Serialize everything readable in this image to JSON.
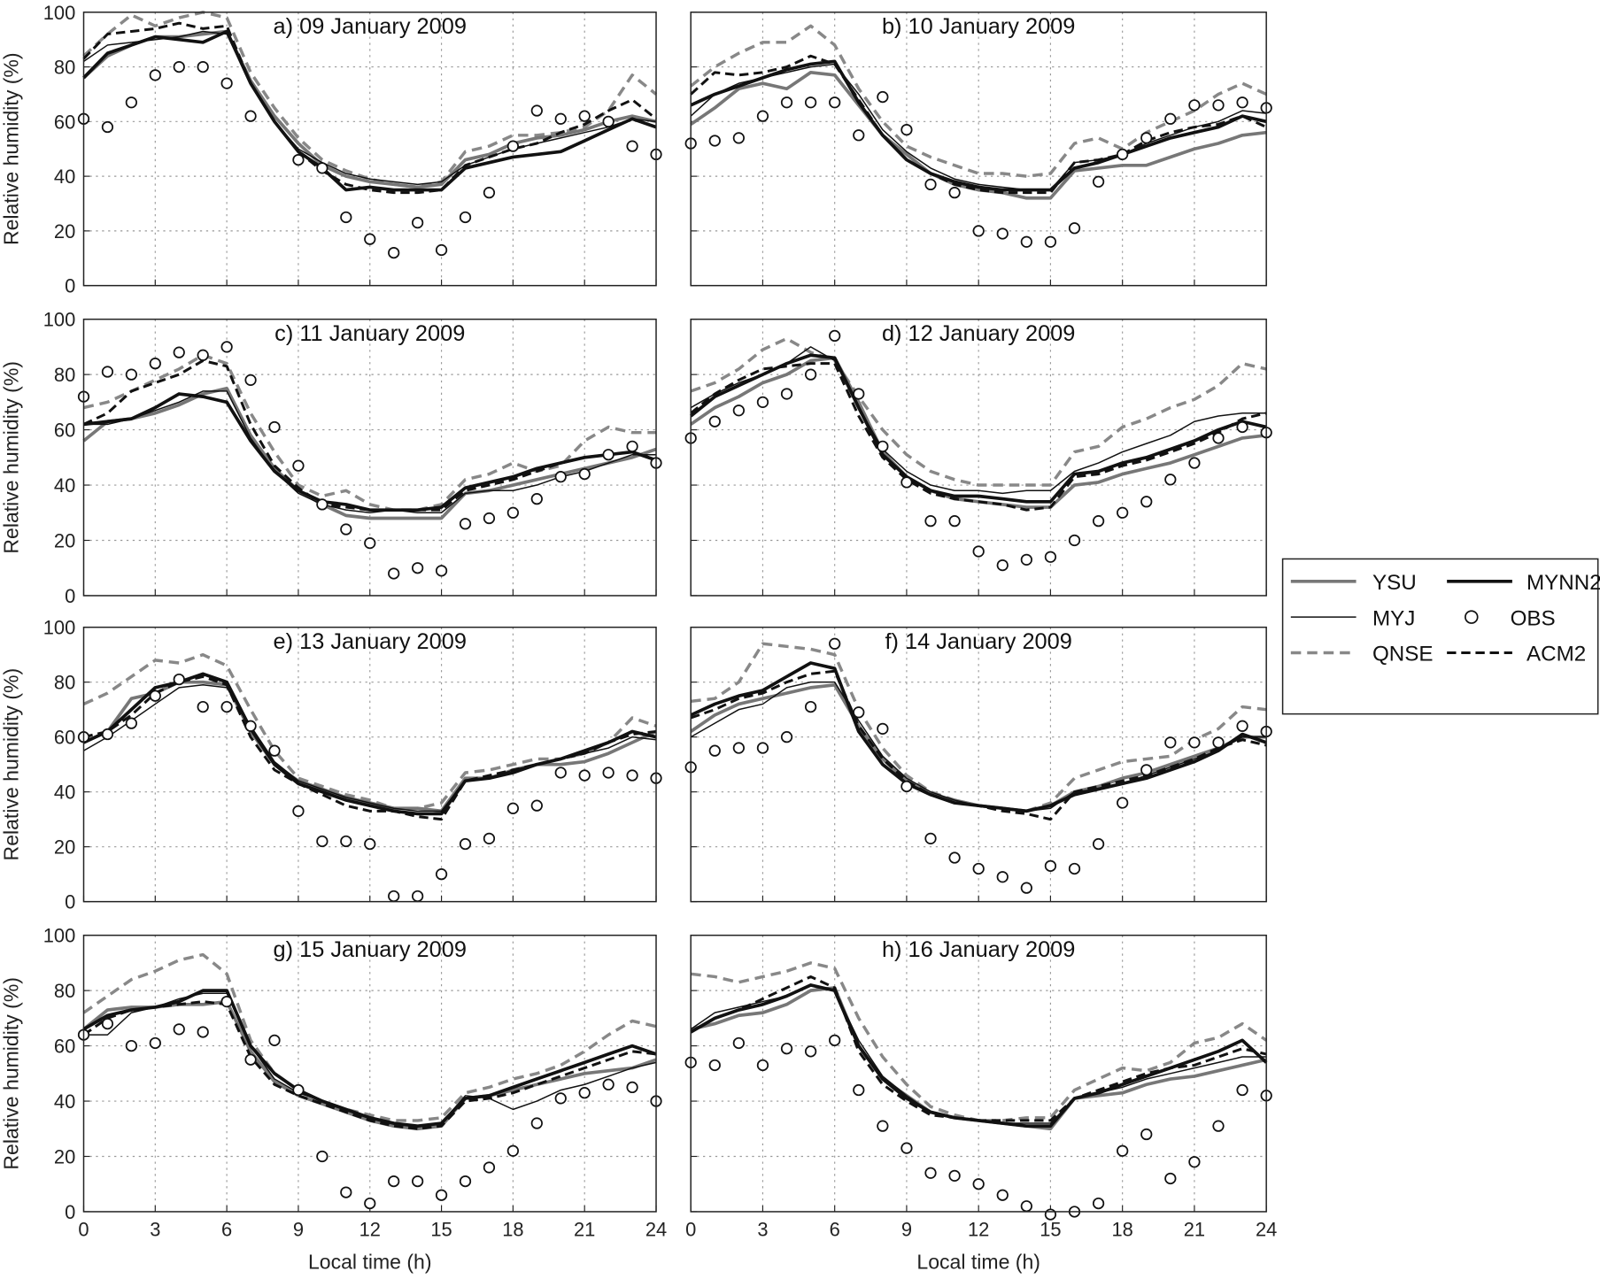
{
  "chart_data": {
    "type": "line",
    "ylabel": "Relative humidity (%)",
    "xlabel": "Local time (h)",
    "xlim": [
      0,
      24
    ],
    "ylim": [
      0,
      100
    ],
    "xticks": [
      0,
      3,
      6,
      9,
      12,
      15,
      18,
      21,
      24
    ],
    "yticks": [
      0,
      20,
      40,
      60,
      80,
      100
    ],
    "grid": true,
    "legend_position": "right",
    "x": [
      0,
      1,
      2,
      3,
      4,
      5,
      6,
      7,
      8,
      9,
      10,
      11,
      12,
      13,
      14,
      15,
      16,
      17,
      18,
      19,
      20,
      21,
      22,
      23,
      24
    ],
    "series_styles": {
      "YSU": {
        "color": "#777777",
        "style": "solid-thick"
      },
      "MYJ": {
        "color": "#111111",
        "style": "solid-thin"
      },
      "QNSE": {
        "color": "#888888",
        "style": "dashed-thick"
      },
      "MYNN2": {
        "color": "#111111",
        "style": "solid-thick"
      },
      "ACM2": {
        "color": "#111111",
        "style": "dashed"
      },
      "OBS": {
        "color": "#111111",
        "style": "circle-marker"
      }
    },
    "legend": [
      "YSU",
      "MYNN2",
      "MYJ",
      "OBS",
      "QNSE",
      "ACM2"
    ],
    "panels": [
      {
        "title": "a) 09 January 2009",
        "YSU": [
          76,
          84,
          88,
          91,
          91,
          92,
          93,
          75,
          62,
          52,
          44,
          40,
          38,
          37,
          36,
          37,
          46,
          48,
          52,
          54,
          55,
          57,
          60,
          62,
          60
        ],
        "MYJ": [
          82,
          88,
          89,
          90,
          91,
          93,
          92,
          74,
          60,
          50,
          45,
          41,
          39,
          38,
          37,
          38,
          44,
          47,
          50,
          52,
          54,
          56,
          58,
          61,
          60
        ],
        "QNSE": [
          84,
          92,
          99,
          95,
          98,
          100,
          98,
          78,
          65,
          54,
          46,
          42,
          39,
          37,
          36,
          38,
          49,
          51,
          55,
          55,
          56,
          58,
          64,
          77,
          70
        ],
        "MYNN2": [
          76,
          85,
          88,
          91,
          90,
          89,
          93,
          74,
          60,
          49,
          43,
          35,
          36,
          35,
          35,
          35,
          43,
          45,
          47,
          48,
          49,
          53,
          57,
          61,
          58
        ],
        "ACM2": [
          83,
          92,
          93,
          94,
          96,
          94,
          95,
          74,
          60,
          49,
          42,
          37,
          35,
          34,
          34,
          35,
          44,
          47,
          50,
          52,
          56,
          59,
          64,
          68,
          61
        ],
        "OBS": [
          61,
          58,
          67,
          77,
          80,
          80,
          74,
          62,
          null,
          46,
          43,
          25,
          17,
          12,
          23,
          13,
          25,
          34,
          51,
          64,
          61,
          62,
          60,
          51,
          48
        ]
      },
      {
        "title": "b) 10 January 2009",
        "YSU": [
          59,
          65,
          72,
          74,
          72,
          78,
          77,
          66,
          55,
          48,
          41,
          37,
          35,
          34,
          32,
          32,
          42,
          43,
          44,
          44,
          47,
          50,
          52,
          55,
          56
        ],
        "MYJ": [
          62,
          70,
          74,
          76,
          78,
          80,
          81,
          70,
          57,
          49,
          43,
          39,
          37,
          36,
          35,
          35,
          45,
          46,
          48,
          52,
          55,
          58,
          60,
          64,
          63
        ],
        "QNSE": [
          73,
          80,
          85,
          89,
          89,
          95,
          88,
          72,
          60,
          51,
          47,
          44,
          41,
          41,
          40,
          41,
          52,
          54,
          50,
          56,
          60,
          64,
          70,
          74,
          70
        ],
        "MYNN2": [
          66,
          70,
          73,
          76,
          79,
          81,
          82,
          67,
          55,
          46,
          41,
          38,
          36,
          35,
          35,
          35,
          43,
          45,
          48,
          51,
          54,
          56,
          58,
          62,
          60
        ],
        "ACM2": [
          70,
          78,
          77,
          78,
          80,
          84,
          81,
          68,
          55,
          46,
          41,
          37,
          35,
          34,
          34,
          34,
          45,
          46,
          48,
          53,
          56,
          58,
          59,
          62,
          58
        ],
        "OBS": [
          52,
          53,
          54,
          62,
          67,
          67,
          67,
          55,
          69,
          57,
          37,
          34,
          20,
          19,
          16,
          16,
          21,
          38,
          48,
          54,
          61,
          66,
          66,
          67,
          65
        ]
      },
      {
        "title": "c) 11 January 2009",
        "YSU": [
          56,
          63,
          64,
          66,
          69,
          73,
          75,
          58,
          46,
          38,
          33,
          29,
          28,
          28,
          28,
          28,
          37,
          38,
          40,
          42,
          44,
          46,
          48,
          50,
          53
        ],
        "MYJ": [
          62,
          62,
          64,
          67,
          70,
          74,
          74,
          57,
          45,
          37,
          33,
          31,
          30,
          31,
          30,
          30,
          37,
          38,
          38,
          40,
          43,
          45,
          48,
          51,
          51
        ],
        "QNSE": [
          68,
          70,
          74,
          78,
          82,
          87,
          84,
          66,
          52,
          40,
          36,
          38,
          33,
          31,
          31,
          33,
          42,
          44,
          48,
          45,
          47,
          56,
          61,
          59,
          59
        ],
        "MYNN2": [
          62,
          63,
          64,
          68,
          73,
          72,
          70,
          56,
          45,
          38,
          34,
          33,
          31,
          31,
          31,
          32,
          39,
          41,
          43,
          46,
          48,
          50,
          51,
          52,
          49
        ],
        "ACM2": [
          62,
          66,
          74,
          77,
          80,
          85,
          83,
          62,
          47,
          39,
          33,
          32,
          31,
          31,
          31,
          31,
          38,
          40,
          42,
          45,
          48,
          50,
          51,
          52,
          49
        ],
        "OBS": [
          72,
          81,
          80,
          84,
          88,
          87,
          90,
          78,
          61,
          47,
          33,
          24,
          19,
          8,
          10,
          9,
          26,
          28,
          30,
          35,
          43,
          44,
          51,
          54,
          48
        ]
      },
      {
        "title": "d) 12 January 2009",
        "YSU": [
          62,
          68,
          72,
          77,
          80,
          85,
          86,
          70,
          52,
          43,
          38,
          35,
          34,
          33,
          32,
          32,
          40,
          41,
          44,
          46,
          48,
          51,
          54,
          57,
          58
        ],
        "MYJ": [
          68,
          73,
          77,
          80,
          84,
          90,
          85,
          68,
          53,
          45,
          40,
          38,
          38,
          37,
          38,
          38,
          45,
          48,
          52,
          55,
          58,
          63,
          65,
          66,
          66
        ],
        "QNSE": [
          74,
          77,
          82,
          89,
          93,
          88,
          85,
          72,
          60,
          51,
          45,
          42,
          40,
          40,
          40,
          40,
          52,
          54,
          61,
          64,
          68,
          71,
          76,
          84,
          82
        ],
        "MYNN2": [
          65,
          72,
          76,
          80,
          84,
          87,
          86,
          68,
          51,
          43,
          38,
          36,
          36,
          35,
          34,
          34,
          44,
          45,
          48,
          50,
          53,
          56,
          60,
          63,
          61
        ],
        "ACM2": [
          66,
          73,
          78,
          82,
          83,
          84,
          84,
          65,
          50,
          42,
          37,
          35,
          34,
          33,
          31,
          32,
          43,
          44,
          47,
          49,
          52,
          55,
          59,
          64,
          66
        ],
        "OBS": [
          57,
          63,
          67,
          70,
          73,
          80,
          94,
          73,
          54,
          41,
          27,
          27,
          16,
          11,
          13,
          14,
          20,
          27,
          30,
          34,
          42,
          48,
          57,
          61,
          59
        ]
      },
      {
        "title": "e) 13 January 2009",
        "YSU": [
          58,
          62,
          74,
          76,
          80,
          80,
          79,
          62,
          50,
          44,
          41,
          38,
          36,
          34,
          34,
          33,
          45,
          45,
          48,
          50,
          50,
          51,
          54,
          58,
          62
        ],
        "MYJ": [
          55,
          60,
          66,
          72,
          78,
          79,
          78,
          64,
          51,
          44,
          41,
          38,
          36,
          34,
          33,
          33,
          44,
          45,
          48,
          50,
          52,
          54,
          56,
          60,
          59
        ],
        "QNSE": [
          72,
          76,
          82,
          88,
          87,
          90,
          86,
          70,
          55,
          45,
          42,
          39,
          37,
          34,
          34,
          36,
          47,
          48,
          50,
          52,
          52,
          54,
          58,
          67,
          64
        ],
        "MYNN2": [
          58,
          62,
          70,
          78,
          80,
          83,
          80,
          63,
          50,
          43,
          40,
          37,
          35,
          33,
          32,
          32,
          44,
          45,
          47,
          50,
          52,
          55,
          58,
          62,
          60
        ],
        "ACM2": [
          60,
          62,
          68,
          76,
          80,
          82,
          79,
          60,
          48,
          43,
          39,
          35,
          33,
          33,
          31,
          30,
          44,
          46,
          48,
          50,
          52,
          54,
          58,
          61,
          62
        ],
        "OBS": [
          60,
          61,
          65,
          75,
          81,
          71,
          71,
          64,
          55,
          33,
          22,
          22,
          21,
          2,
          2,
          10,
          21,
          23,
          34,
          35,
          47,
          46,
          47,
          46,
          45
        ]
      },
      {
        "title": "f) 14 January 2009",
        "YSU": [
          62,
          68,
          72,
          74,
          76,
          78,
          79,
          64,
          52,
          44,
          39,
          37,
          35,
          34,
          33,
          35,
          40,
          42,
          45,
          47,
          50,
          53,
          56,
          60,
          60
        ],
        "MYJ": [
          60,
          65,
          70,
          72,
          78,
          80,
          80,
          66,
          53,
          45,
          40,
          37,
          35,
          34,
          33,
          34,
          40,
          41,
          43,
          46,
          49,
          52,
          55,
          60,
          60
        ],
        "QNSE": [
          73,
          74,
          80,
          94,
          93,
          92,
          90,
          70,
          56,
          46,
          40,
          37,
          35,
          34,
          33,
          36,
          45,
          48,
          51,
          52,
          53,
          59,
          63,
          71,
          70
        ],
        "MYNN2": [
          68,
          72,
          75,
          77,
          82,
          87,
          85,
          62,
          50,
          43,
          39,
          36,
          35,
          34,
          33,
          35,
          39,
          41,
          43,
          45,
          48,
          51,
          55,
          61,
          58
        ],
        "ACM2": [
          67,
          70,
          74,
          76,
          80,
          83,
          84,
          64,
          52,
          44,
          39,
          36,
          35,
          33,
          32,
          30,
          40,
          42,
          44,
          46,
          49,
          52,
          56,
          59,
          57
        ],
        "OBS": [
          49,
          55,
          56,
          56,
          60,
          71,
          94,
          69,
          63,
          42,
          23,
          16,
          12,
          9,
          5,
          13,
          12,
          21,
          36,
          48,
          58,
          58,
          58,
          64,
          62
        ]
      },
      {
        "title": "g) 15 January 2009",
        "YSU": [
          66,
          73,
          74,
          74,
          75,
          75,
          76,
          58,
          47,
          42,
          39,
          36,
          33,
          31,
          30,
          31,
          41,
          42,
          44,
          46,
          48,
          50,
          51,
          52,
          55
        ],
        "MYJ": [
          64,
          64,
          72,
          74,
          77,
          79,
          79,
          60,
          48,
          43,
          40,
          37,
          34,
          32,
          31,
          32,
          42,
          41,
          37,
          40,
          44,
          46,
          49,
          52,
          54
        ],
        "QNSE": [
          72,
          78,
          84,
          87,
          91,
          93,
          86,
          62,
          50,
          44,
          40,
          37,
          35,
          33,
          33,
          34,
          43,
          45,
          48,
          50,
          53,
          58,
          64,
          69,
          67
        ],
        "MYNN2": [
          66,
          71,
          73,
          74,
          76,
          80,
          80,
          60,
          50,
          44,
          40,
          37,
          34,
          32,
          31,
          32,
          41,
          42,
          45,
          48,
          51,
          54,
          57,
          60,
          57
        ],
        "ACM2": [
          64,
          70,
          73,
          74,
          75,
          76,
          75,
          56,
          46,
          42,
          39,
          36,
          33,
          31,
          30,
          31,
          40,
          41,
          43,
          46,
          49,
          52,
          55,
          58,
          57
        ],
        "OBS": [
          64,
          68,
          60,
          61,
          66,
          65,
          76,
          55,
          62,
          44,
          20,
          7,
          3,
          11,
          11,
          6,
          11,
          16,
          22,
          32,
          41,
          43,
          46,
          45,
          40
        ]
      },
      {
        "title": "h) 16 January 2009",
        "YSU": [
          66,
          68,
          71,
          72,
          75,
          80,
          81,
          60,
          48,
          42,
          36,
          34,
          33,
          32,
          31,
          30,
          41,
          42,
          43,
          46,
          48,
          49,
          51,
          53,
          55
        ],
        "MYJ": [
          66,
          72,
          74,
          76,
          78,
          82,
          80,
          62,
          49,
          42,
          36,
          34,
          33,
          32,
          32,
          32,
          41,
          43,
          45,
          48,
          50,
          52,
          54,
          56,
          56
        ],
        "QNSE": [
          86,
          85,
          83,
          85,
          87,
          90,
          88,
          70,
          56,
          46,
          38,
          35,
          33,
          33,
          34,
          34,
          44,
          48,
          52,
          51,
          54,
          61,
          63,
          68,
          62
        ],
        "MYNN2": [
          65,
          70,
          73,
          75,
          78,
          82,
          80,
          60,
          48,
          41,
          36,
          34,
          33,
          32,
          31,
          31,
          41,
          43,
          46,
          49,
          52,
          55,
          58,
          62,
          54
        ],
        "ACM2": [
          65,
          70,
          73,
          77,
          81,
          85,
          81,
          58,
          46,
          40,
          35,
          34,
          33,
          33,
          33,
          33,
          41,
          44,
          47,
          50,
          52,
          53,
          56,
          59,
          57
        ],
        "OBS": [
          54,
          53,
          61,
          53,
          59,
          58,
          62,
          44,
          31,
          23,
          14,
          13,
          10,
          6,
          2,
          -1,
          0,
          3,
          22,
          28,
          12,
          18,
          31,
          44,
          42
        ]
      }
    ]
  }
}
